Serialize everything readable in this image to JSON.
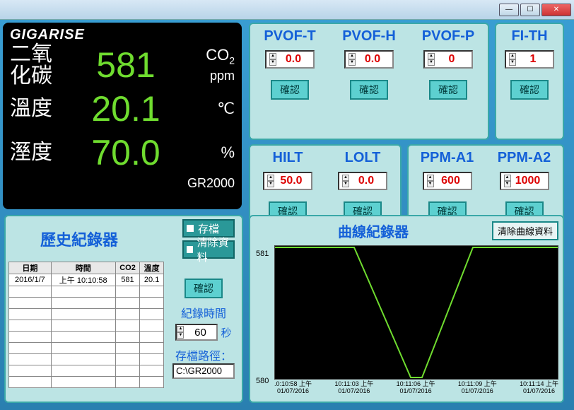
{
  "window": {
    "title": ""
  },
  "display": {
    "brand": "GIGARISE",
    "model": "GR2000",
    "co2": {
      "label": "二氧\n化碳",
      "value": "581",
      "unit_main": "CO",
      "unit_sub": "2",
      "unit_line2": "ppm"
    },
    "temp": {
      "label": "溫度",
      "value": "20.1",
      "unit": "℃"
    },
    "humid": {
      "label": "溼度",
      "value": "70.0",
      "unit": "%"
    }
  },
  "params": {
    "pvof_t": {
      "title": "PVOF-T",
      "value": "0.0"
    },
    "pvof_h": {
      "title": "PVOF-H",
      "value": "0.0"
    },
    "pvof_p": {
      "title": "PVOF-P",
      "value": "0"
    },
    "fi_th": {
      "title": "FI-TH",
      "value": "1"
    },
    "hilt": {
      "title": "HILT",
      "value": "50.0"
    },
    "lolt": {
      "title": "LOLT",
      "value": "0.0"
    },
    "ppm_a1": {
      "title": "PPM-A1",
      "value": "600"
    },
    "ppm_a2": {
      "title": "PPM-A2",
      "value": "1000"
    },
    "confirm": "確認"
  },
  "history": {
    "title": "歷史紀錄器",
    "save_btn": "存檔",
    "clear_btn": "清除資料",
    "confirm": "確認",
    "rec_time_label": "紀錄時間",
    "rec_time_value": "60",
    "rec_time_unit": "秒",
    "path_label": "存檔路徑：",
    "path_value": "C:\\GR2000",
    "columns": [
      "日期",
      "時間",
      "CO2",
      "溫度"
    ],
    "rows": [
      [
        "2016/1/7",
        "上午 10:10:58",
        "581",
        "20.1"
      ]
    ]
  },
  "chart": {
    "title": "曲線紀錄器",
    "clear_btn": "清除曲線資料",
    "ymax": "581",
    "ymin": "580",
    "xorigin_t": ".0:10:58 上午",
    "xorigin_d": "01/07/2016",
    "xticks": [
      {
        "t": "10:11:03 上午",
        "d": "01/07/2016"
      },
      {
        "t": "10:11:06 上午",
        "d": "01/07/2016"
      },
      {
        "t": "10:11:09 上午",
        "d": "01/07/2016"
      },
      {
        "t": "10:11:14 上午",
        "d": "01/07/2016"
      }
    ],
    "line_color": "#6fdc2f",
    "points": [
      [
        0,
        0
      ],
      [
        0.28,
        0
      ],
      [
        0.48,
        1
      ],
      [
        0.52,
        1
      ],
      [
        0.7,
        0
      ],
      [
        1,
        0
      ]
    ]
  }
}
